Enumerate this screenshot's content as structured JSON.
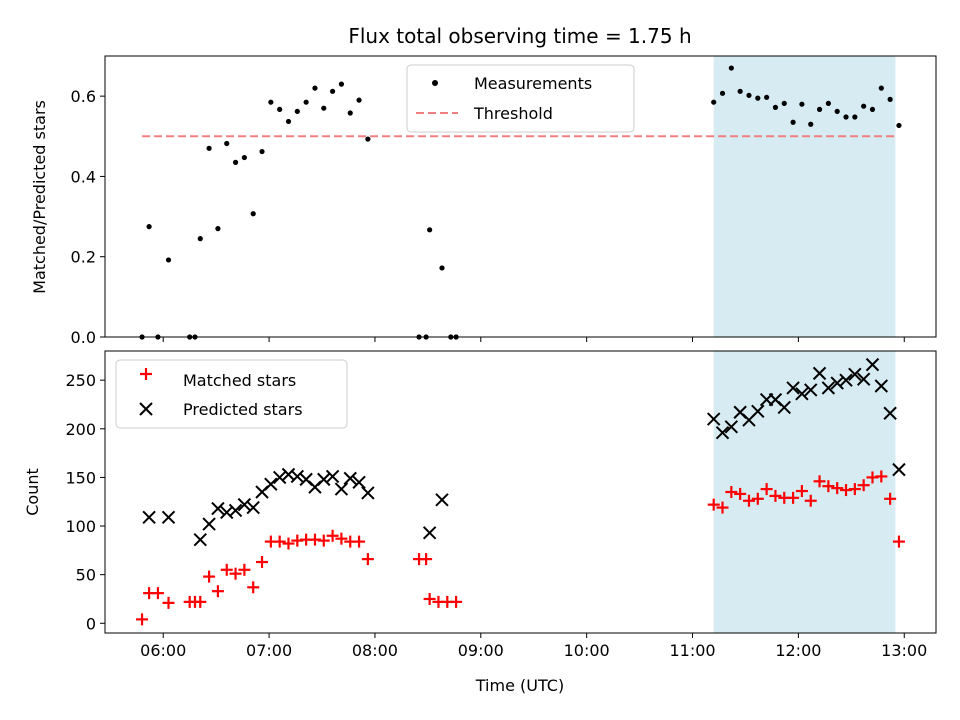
{
  "chart_data": [
    {
      "type": "scatter",
      "title": "Flux total observing time = 1.75 h",
      "xlabel": "",
      "ylabel": "Matched/Predicted stars",
      "xlim": [
        "05:27",
        "13:18"
      ],
      "ylim": [
        0,
        0.7
      ],
      "x_ticks": [
        "06:00",
        "07:00",
        "08:00",
        "09:00",
        "10:00",
        "11:00",
        "12:00",
        "13:00"
      ],
      "x_tick_labels_visible": false,
      "y_ticks": [
        "0.0",
        "0.2",
        "0.4",
        "0.6"
      ],
      "grid": false,
      "legend_position": "top-center",
      "shaded_span": {
        "x": [
          "11:12",
          "12:55"
        ],
        "color": "#add8e6"
      },
      "threshold": {
        "name": "Threshold",
        "value": 0.5,
        "x": [
          "05:48",
          "12:55"
        ],
        "color": "#f08080",
        "style": "dashed"
      },
      "series": [
        {
          "name": "Measurements",
          "marker": "dot",
          "color": "#000000",
          "points": [
            [
              "05:48",
              0.0
            ],
            [
              "05:52",
              0.275
            ],
            [
              "05:57",
              0.0
            ],
            [
              "06:03",
              0.192
            ],
            [
              "06:15",
              0.0
            ],
            [
              "06:18",
              0.0
            ],
            [
              "06:21",
              0.245
            ],
            [
              "06:26",
              0.47
            ],
            [
              "06:31",
              0.27
            ],
            [
              "06:36",
              0.482
            ],
            [
              "06:41",
              0.435
            ],
            [
              "06:46",
              0.447
            ],
            [
              "06:51",
              0.307
            ],
            [
              "06:56",
              0.462
            ],
            [
              "07:01",
              0.585
            ],
            [
              "07:06",
              0.567
            ],
            [
              "07:11",
              0.537
            ],
            [
              "07:16",
              0.562
            ],
            [
              "07:21",
              0.585
            ],
            [
              "07:26",
              0.62
            ],
            [
              "07:31",
              0.57
            ],
            [
              "07:36",
              0.612
            ],
            [
              "07:41",
              0.63
            ],
            [
              "07:46",
              0.558
            ],
            [
              "07:51",
              0.59
            ],
            [
              "07:56",
              0.493
            ],
            [
              "08:25",
              0.0
            ],
            [
              "08:29",
              0.0
            ],
            [
              "08:31",
              0.267
            ],
            [
              "08:38",
              0.172
            ],
            [
              "08:43",
              0.0
            ],
            [
              "08:46",
              0.0
            ],
            [
              "11:12",
              0.585
            ],
            [
              "11:17",
              0.607
            ],
            [
              "11:22",
              0.67
            ],
            [
              "11:27",
              0.612
            ],
            [
              "11:32",
              0.602
            ],
            [
              "11:37",
              0.595
            ],
            [
              "11:42",
              0.597
            ],
            [
              "11:47",
              0.572
            ],
            [
              "11:52",
              0.582
            ],
            [
              "11:57",
              0.535
            ],
            [
              "12:02",
              0.58
            ],
            [
              "12:07",
              0.53
            ],
            [
              "12:12",
              0.567
            ],
            [
              "12:17",
              0.582
            ],
            [
              "12:22",
              0.562
            ],
            [
              "12:27",
              0.548
            ],
            [
              "12:32",
              0.548
            ],
            [
              "12:37",
              0.575
            ],
            [
              "12:42",
              0.567
            ],
            [
              "12:47",
              0.62
            ],
            [
              "12:52",
              0.592
            ],
            [
              "12:57",
              0.527
            ]
          ]
        }
      ]
    },
    {
      "type": "scatter",
      "title": "",
      "xlabel": "Time (UTC)",
      "ylabel": "Count",
      "xlim": [
        "05:27",
        "13:18"
      ],
      "ylim": [
        -10,
        280
      ],
      "x_ticks": [
        "06:00",
        "07:00",
        "08:00",
        "09:00",
        "10:00",
        "11:00",
        "12:00",
        "13:00"
      ],
      "y_ticks": [
        "0",
        "50",
        "100",
        "150",
        "200",
        "250"
      ],
      "grid": false,
      "legend_position": "top-left",
      "shaded_span": {
        "x": [
          "11:12",
          "12:55"
        ],
        "color": "#add8e6"
      },
      "series": [
        {
          "name": "Matched stars",
          "marker": "plus",
          "color": "#ff0000",
          "points": [
            [
              "05:48",
              4
            ],
            [
              "05:52",
              31
            ],
            [
              "05:57",
              31
            ],
            [
              "06:03",
              21
            ],
            [
              "06:15",
              22
            ],
            [
              "06:18",
              22
            ],
            [
              "06:21",
              22
            ],
            [
              "06:26",
              48
            ],
            [
              "06:31",
              33
            ],
            [
              "06:36",
              55
            ],
            [
              "06:41",
              51
            ],
            [
              "06:46",
              55
            ],
            [
              "06:51",
              37
            ],
            [
              "06:56",
              63
            ],
            [
              "07:01",
              84
            ],
            [
              "07:06",
              84
            ],
            [
              "07:11",
              82
            ],
            [
              "07:16",
              85
            ],
            [
              "07:21",
              86
            ],
            [
              "07:26",
              86
            ],
            [
              "07:31",
              85
            ],
            [
              "07:36",
              90
            ],
            [
              "07:41",
              87
            ],
            [
              "07:46",
              84
            ],
            [
              "07:51",
              84
            ],
            [
              "07:56",
              66
            ],
            [
              "08:25",
              66
            ],
            [
              "08:29",
              66
            ],
            [
              "08:31",
              25
            ],
            [
              "08:36",
              22
            ],
            [
              "08:41",
              22
            ],
            [
              "08:46",
              22
            ],
            [
              "11:12",
              122
            ],
            [
              "11:17",
              119
            ],
            [
              "11:22",
              135
            ],
            [
              "11:27",
              133
            ],
            [
              "11:32",
              126
            ],
            [
              "11:37",
              128
            ],
            [
              "11:42",
              138
            ],
            [
              "11:47",
              131
            ],
            [
              "11:52",
              129
            ],
            [
              "11:57",
              129
            ],
            [
              "12:02",
              136
            ],
            [
              "12:07",
              126
            ],
            [
              "12:12",
              146
            ],
            [
              "12:17",
              141
            ],
            [
              "12:22",
              139
            ],
            [
              "12:27",
              137
            ],
            [
              "12:32",
              138
            ],
            [
              "12:37",
              142
            ],
            [
              "12:42",
              150
            ],
            [
              "12:47",
              151
            ],
            [
              "12:52",
              128
            ],
            [
              "12:57",
              84
            ]
          ]
        },
        {
          "name": "Predicted stars",
          "marker": "x",
          "color": "#000000",
          "points": [
            [
              "05:52",
              109
            ],
            [
              "06:03",
              109
            ],
            [
              "06:21",
              86
            ],
            [
              "06:26",
              102
            ],
            [
              "06:31",
              118
            ],
            [
              "06:36",
              114
            ],
            [
              "06:41",
              116
            ],
            [
              "06:46",
              122
            ],
            [
              "06:51",
              119
            ],
            [
              "06:56",
              135
            ],
            [
              "07:01",
              143
            ],
            [
              "07:06",
              150
            ],
            [
              "07:11",
              153
            ],
            [
              "07:16",
              151
            ],
            [
              "07:21",
              148
            ],
            [
              "07:26",
              140
            ],
            [
              "07:31",
              148
            ],
            [
              "07:36",
              151
            ],
            [
              "07:41",
              138
            ],
            [
              "07:46",
              149
            ],
            [
              "07:51",
              145
            ],
            [
              "07:56",
              134
            ],
            [
              "08:31",
              93
            ],
            [
              "08:38",
              127
            ],
            [
              "11:12",
              210
            ],
            [
              "11:17",
              196
            ],
            [
              "11:22",
              202
            ],
            [
              "11:27",
              217
            ],
            [
              "11:32",
              209
            ],
            [
              "11:37",
              218
            ],
            [
              "11:42",
              230
            ],
            [
              "11:47",
              230
            ],
            [
              "11:52",
              222
            ],
            [
              "11:57",
              242
            ],
            [
              "12:02",
              236
            ],
            [
              "12:07",
              240
            ],
            [
              "12:12",
              257
            ],
            [
              "12:17",
              242
            ],
            [
              "12:22",
              247
            ],
            [
              "12:27",
              250
            ],
            [
              "12:32",
              256
            ],
            [
              "12:37",
              251
            ],
            [
              "12:42",
              266
            ],
            [
              "12:47",
              244
            ],
            [
              "12:52",
              216
            ],
            [
              "12:57",
              158
            ]
          ]
        }
      ]
    }
  ]
}
